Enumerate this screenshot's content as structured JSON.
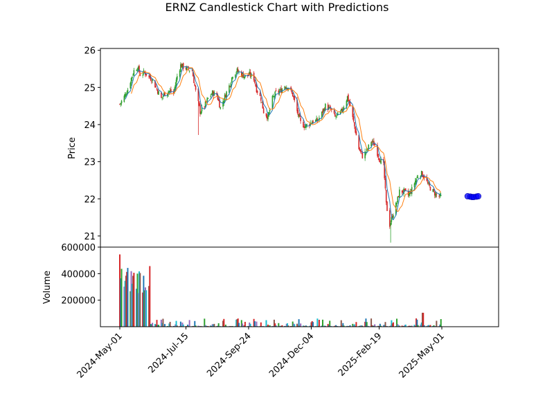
{
  "chart_data": {
    "type": "candlestick",
    "title": "ERNZ Candlestick Chart with Predictions",
    "price_panel": {
      "ylabel": "Price",
      "ylim": [
        20.7,
        26.05
      ],
      "yticks": [
        21,
        22,
        23,
        24,
        25,
        26
      ]
    },
    "volume_panel": {
      "ylabel": "Volume",
      "ylim": [
        0,
        600000
      ],
      "yticks": [
        200000,
        400000,
        600000
      ],
      "ytick_labels": [
        "200000",
        "400000",
        "600000"
      ]
    },
    "x_axis": {
      "start_date": "2024-04-29",
      "end_date": "2025-06-24",
      "ticks": [
        "2024-May-01",
        "2024-Jul-15",
        "2024-Sep-24",
        "2024-Dec-04",
        "2025-Feb-19",
        "2025-May-01"
      ],
      "tick_dates": [
        "2024-05-01",
        "2024-07-15",
        "2024-09-24",
        "2024-12-04",
        "2025-02-19",
        "2025-05-01"
      ]
    },
    "candle_colors": {
      "up": "#2ca02c",
      "down": "#d62728"
    },
    "ma_colors": {
      "fast": "#1f77b4",
      "slow": "#ff7f0e"
    },
    "volume_colors": [
      "#d62728",
      "#1f77b4",
      "#2ca02c",
      "#9467bd",
      "#17becf",
      "#8c564b"
    ],
    "prediction_color": "#0000ff",
    "close_series": [
      [
        "2024-05-01",
        24.55
      ],
      [
        "2024-05-06",
        24.75
      ],
      [
        "2024-05-10",
        24.95
      ],
      [
        "2024-05-14",
        25.25
      ],
      [
        "2024-05-17",
        25.45
      ],
      [
        "2024-05-21",
        25.55
      ],
      [
        "2024-05-24",
        25.35
      ],
      [
        "2024-05-29",
        25.4
      ],
      [
        "2024-06-03",
        25.3
      ],
      [
        "2024-06-07",
        25.2
      ],
      [
        "2024-06-12",
        24.95
      ],
      [
        "2024-06-17",
        24.7
      ],
      [
        "2024-06-21",
        24.85
      ],
      [
        "2024-06-26",
        24.9
      ],
      [
        "2024-07-01",
        24.85
      ],
      [
        "2024-07-05",
        25.3
      ],
      [
        "2024-07-09",
        25.6
      ],
      [
        "2024-07-12",
        25.55
      ],
      [
        "2024-07-17",
        25.5
      ],
      [
        "2024-07-22",
        25.45
      ],
      [
        "2024-07-26",
        24.9
      ],
      [
        "2024-07-31",
        24.35
      ],
      [
        "2024-08-05",
        24.5
      ],
      [
        "2024-08-09",
        24.7
      ],
      [
        "2024-08-14",
        24.85
      ],
      [
        "2024-08-19",
        24.8
      ],
      [
        "2024-08-23",
        24.45
      ],
      [
        "2024-08-28",
        24.75
      ],
      [
        "2024-09-03",
        25.1
      ],
      [
        "2024-09-06",
        25.35
      ],
      [
        "2024-09-11",
        25.45
      ],
      [
        "2024-09-16",
        25.35
      ],
      [
        "2024-09-20",
        25.3
      ],
      [
        "2024-09-25",
        25.35
      ],
      [
        "2024-09-30",
        25.25
      ],
      [
        "2024-10-03",
        24.95
      ],
      [
        "2024-10-08",
        24.7
      ],
      [
        "2024-10-11",
        24.35
      ],
      [
        "2024-10-16",
        24.2
      ],
      [
        "2024-10-21",
        24.7
      ],
      [
        "2024-10-25",
        24.85
      ],
      [
        "2024-10-30",
        24.9
      ],
      [
        "2024-11-04",
        25.05
      ],
      [
        "2024-11-08",
        25.0
      ],
      [
        "2024-11-13",
        24.8
      ],
      [
        "2024-11-18",
        24.35
      ],
      [
        "2024-11-22",
        24.05
      ],
      [
        "2024-11-27",
        23.95
      ],
      [
        "2024-12-03",
        24.05
      ],
      [
        "2024-12-06",
        24.1
      ],
      [
        "2024-12-11",
        24.1
      ],
      [
        "2024-12-16",
        24.3
      ],
      [
        "2024-12-20",
        24.5
      ],
      [
        "2024-12-26",
        24.4
      ],
      [
        "2024-12-31",
        24.2
      ],
      [
        "2025-01-06",
        24.3
      ],
      [
        "2025-01-10",
        24.5
      ],
      [
        "2025-01-14",
        24.75
      ],
      [
        "2025-01-17",
        24.5
      ],
      [
        "2025-01-22",
        23.95
      ],
      [
        "2025-01-27",
        23.35
      ],
      [
        "2025-01-31",
        23.15
      ],
      [
        "2025-02-05",
        23.3
      ],
      [
        "2025-02-10",
        23.55
      ],
      [
        "2025-02-14",
        23.45
      ],
      [
        "2025-02-19",
        23.1
      ],
      [
        "2025-02-24",
        22.9
      ],
      [
        "2025-02-27",
        21.85
      ],
      [
        "2025-03-03",
        21.3
      ],
      [
        "2025-03-06",
        21.55
      ],
      [
        "2025-03-11",
        21.9
      ],
      [
        "2025-03-14",
        22.2
      ],
      [
        "2025-03-19",
        22.2
      ],
      [
        "2025-03-24",
        22.1
      ],
      [
        "2025-03-28",
        22.25
      ],
      [
        "2025-04-02",
        22.55
      ],
      [
        "2025-04-07",
        22.7
      ],
      [
        "2025-04-11",
        22.6
      ],
      [
        "2025-04-16",
        22.35
      ],
      [
        "2025-04-21",
        22.2
      ],
      [
        "2025-04-25",
        22.1
      ],
      [
        "2025-04-30",
        22.05
      ]
    ],
    "predictions": [
      [
        "2025-05-02",
        22.07
      ],
      [
        "2025-05-05",
        22.06
      ],
      [
        "2025-05-07",
        22.05
      ],
      [
        "2025-05-09",
        22.05
      ],
      [
        "2025-05-12",
        22.06
      ],
      [
        "2025-05-14",
        22.07
      ]
    ]
  }
}
